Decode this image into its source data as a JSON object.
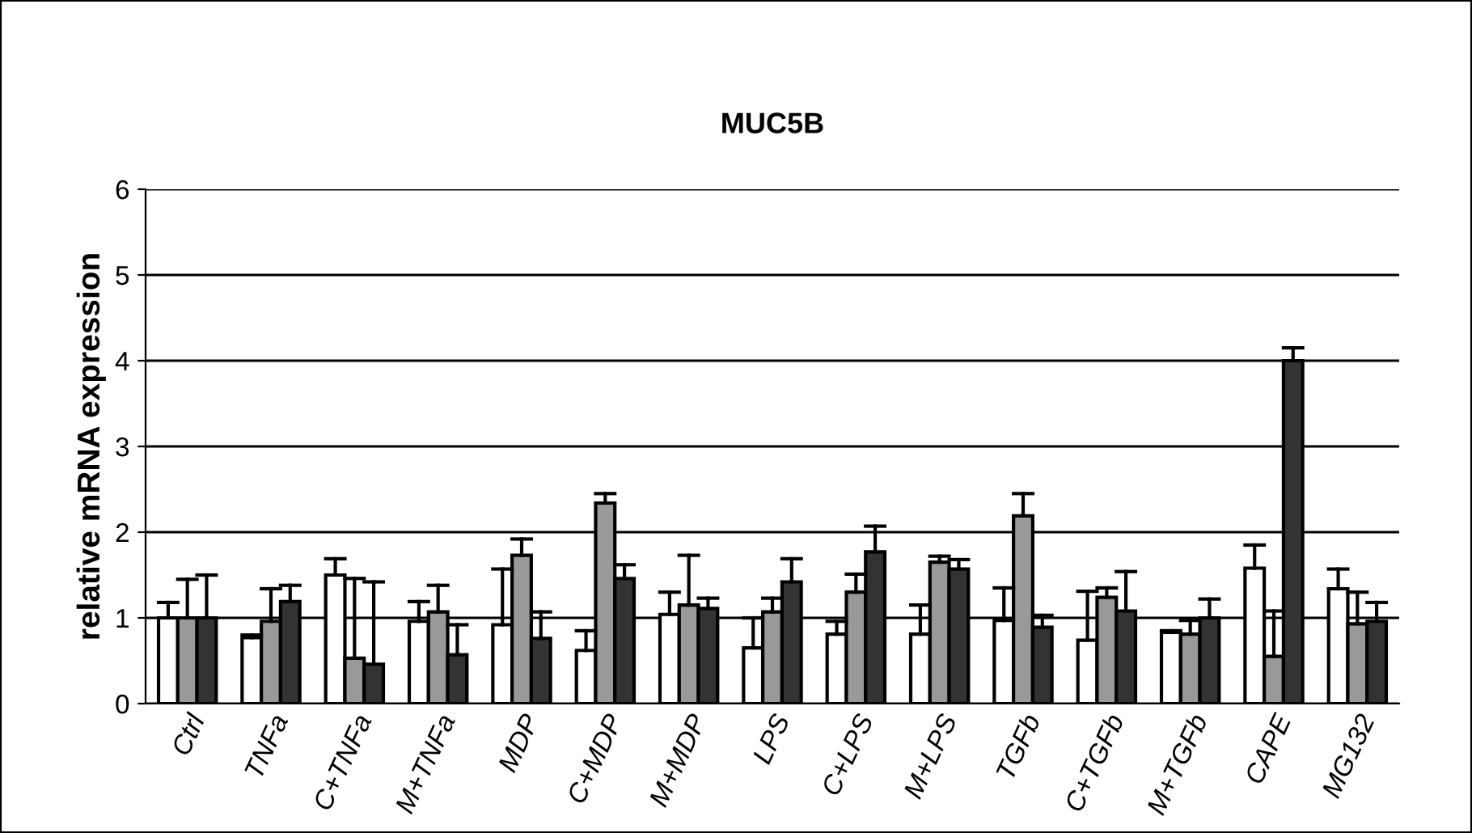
{
  "chart_data": {
    "type": "bar",
    "title": "MUC5B",
    "ylabel": "relative mRNA expression",
    "categories": [
      "Ctrl",
      "TNFa",
      "C+TNFa",
      "M+TNFa",
      "MDP",
      "C+MDP",
      "M+MDP",
      "LPS",
      "C+LPS",
      "M+LPS",
      "TGFb",
      "C+TGFb",
      "M+TGFb",
      "CAPE",
      "MG132"
    ],
    "series": [
      {
        "color": "#ffffff",
        "values": [
          1.0,
          0.77,
          1.5,
          0.96,
          0.92,
          0.62,
          1.04,
          0.65,
          0.81,
          0.81,
          0.97,
          0.74,
          0.83,
          1.58,
          1.34
        ],
        "errors": [
          [
            1.0,
            1.18
          ],
          [
            0.77,
            0.8
          ],
          [
            1.5,
            1.69
          ],
          [
            0.96,
            1.19
          ],
          [
            0.92,
            1.57
          ],
          [
            0.62,
            0.85
          ],
          [
            1.04,
            1.3
          ],
          [
            0.65,
            1.0
          ],
          [
            0.81,
            0.96
          ],
          [
            0.81,
            1.15
          ],
          [
            0.97,
            1.35
          ],
          [
            0.74,
            1.31
          ],
          [
            0.83,
            0.85
          ],
          [
            1.58,
            1.85
          ],
          [
            1.34,
            1.57
          ]
        ]
      },
      {
        "color": "#999999",
        "values": [
          1.0,
          0.96,
          0.53,
          1.07,
          1.73,
          2.34,
          1.15,
          1.07,
          1.3,
          1.65,
          2.19,
          1.24,
          0.81,
          0.55,
          0.93
        ],
        "errors": [
          [
            1.0,
            1.45
          ],
          [
            0.96,
            1.34
          ],
          [
            0.53,
            1.46
          ],
          [
            1.07,
            1.38
          ],
          [
            1.73,
            1.92
          ],
          [
            2.34,
            2.45
          ],
          [
            1.15,
            1.73
          ],
          [
            1.07,
            1.23
          ],
          [
            1.3,
            1.51
          ],
          [
            1.65,
            1.72
          ],
          [
            2.19,
            2.45
          ],
          [
            1.24,
            1.35
          ],
          [
            0.81,
            0.97
          ],
          [
            0.55,
            1.08
          ],
          [
            0.93,
            1.3
          ]
        ]
      },
      {
        "color": "#333333",
        "values": [
          1.0,
          1.19,
          0.46,
          0.57,
          0.76,
          1.46,
          1.11,
          1.42,
          1.77,
          1.57,
          0.89,
          1.08,
          1.0,
          4.0,
          0.96
        ],
        "errors": [
          [
            1.0,
            1.5
          ],
          [
            1.19,
            1.38
          ],
          [
            0.46,
            1.42
          ],
          [
            0.57,
            0.92
          ],
          [
            0.76,
            1.07
          ],
          [
            1.46,
            1.62
          ],
          [
            1.11,
            1.23
          ],
          [
            1.42,
            1.69
          ],
          [
            1.77,
            2.07
          ],
          [
            1.57,
            1.68
          ],
          [
            0.89,
            1.03
          ],
          [
            1.08,
            1.54
          ],
          [
            1.0,
            1.22
          ],
          [
            4.0,
            4.15
          ],
          [
            0.96,
            1.18
          ]
        ]
      }
    ],
    "ylim": [
      0,
      6
    ],
    "yticks": [
      0,
      1,
      2,
      3,
      4,
      5,
      6
    ],
    "grid": "y"
  }
}
